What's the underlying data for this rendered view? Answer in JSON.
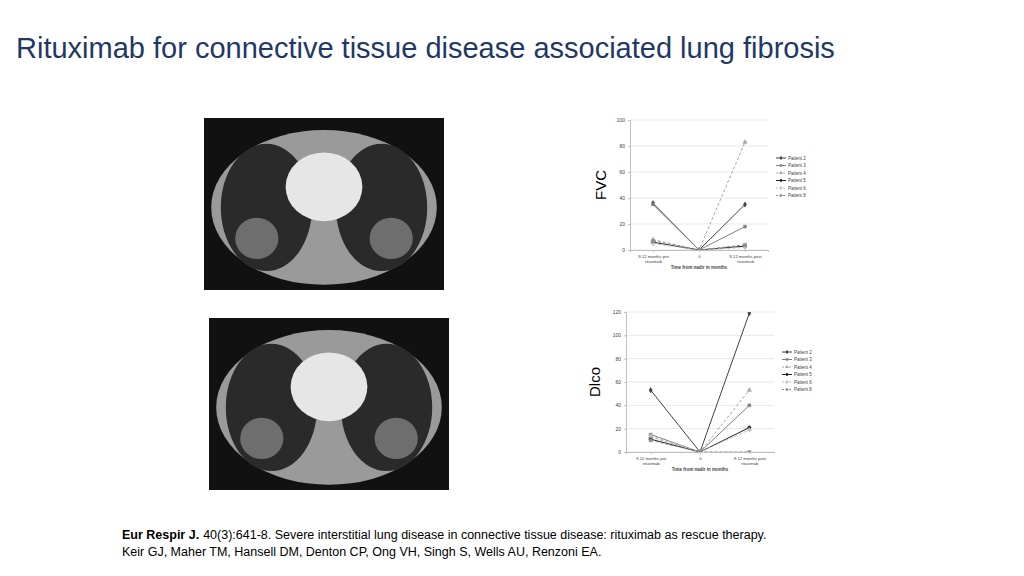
{
  "slide": {
    "title": "Rituximab for connective tissue disease associated lung fibrosis",
    "citation_journal": "Eur Respir J.",
    "citation_details": "40(3):641-8. Severe interstitial lung disease in connective tissue disease: rituximab as rescue therapy.",
    "citation_authors": "Keir GJ, Maher TM, Hansell DM, Denton CP, Ong VH, Singh S, Wells AU, Renzoni EA."
  },
  "chart_data": [
    {
      "type": "line",
      "y_label": "FVC",
      "x_label": "Time from nadir in months",
      "categories": [
        "9-12 months pre rituximab",
        "0",
        "9-12 months post rituximab"
      ],
      "ylim": [
        0,
        100
      ],
      "yticks": [
        0,
        20,
        40,
        60,
        80,
        100
      ],
      "grid": true,
      "legend": "right",
      "series": [
        {
          "name": "Patient 2",
          "color": "#404040",
          "marker": "diamond",
          "line_style": "solid",
          "values": [
            36,
            0,
            35
          ]
        },
        {
          "name": "Patient 3",
          "color": "#808080",
          "marker": "square",
          "line_style": "solid",
          "values": [
            35,
            0,
            18
          ]
        },
        {
          "name": "Patient 4",
          "color": "#a6a6a6",
          "marker": "triangle",
          "line_style": "dashed",
          "values": [
            8,
            0,
            83
          ]
        },
        {
          "name": "Patient 5",
          "color": "#262626",
          "marker": "circle",
          "line_style": "solid",
          "values": [
            6,
            0,
            3
          ]
        },
        {
          "name": "Patient 6",
          "color": "#bfbfbf",
          "marker": "cross",
          "line_style": "dashed",
          "values": [
            5,
            0,
            2
          ]
        },
        {
          "name": "Patient 8",
          "color": "#8c8c8c",
          "marker": "square",
          "line_style": "dashed",
          "values": [
            7,
            0,
            4
          ]
        }
      ]
    },
    {
      "type": "line",
      "y_label": "Dlco",
      "x_label": "Time from nadir in months",
      "categories": [
        "9-12 months pre rituximab",
        "0",
        "9-12 months post rituximab"
      ],
      "ylim": [
        0,
        120
      ],
      "yticks": [
        0,
        20,
        40,
        60,
        80,
        100,
        120
      ],
      "grid": true,
      "legend": "right",
      "series": [
        {
          "name": "Patient 2",
          "color": "#404040",
          "marker": "diamond",
          "line_style": "solid",
          "values": [
            53,
            0,
            119
          ]
        },
        {
          "name": "Patient 3",
          "color": "#808080",
          "marker": "square",
          "line_style": "solid",
          "values": [
            15,
            0,
            40
          ]
        },
        {
          "name": "Patient 4",
          "color": "#a6a6a6",
          "marker": "triangle",
          "line_style": "dashed",
          "values": [
            13,
            0,
            53
          ]
        },
        {
          "name": "Patient 5",
          "color": "#262626",
          "marker": "circle",
          "line_style": "solid",
          "values": [
            11,
            0,
            21
          ]
        },
        {
          "name": "Patient 6",
          "color": "#bfbfbf",
          "marker": "cross",
          "line_style": "dashed",
          "values": [
            14,
            0,
            19
          ]
        },
        {
          "name": "Patient 8",
          "color": "#8c8c8c",
          "marker": "square",
          "line_style": "dashed",
          "values": [
            10,
            0,
            0
          ]
        }
      ]
    }
  ]
}
